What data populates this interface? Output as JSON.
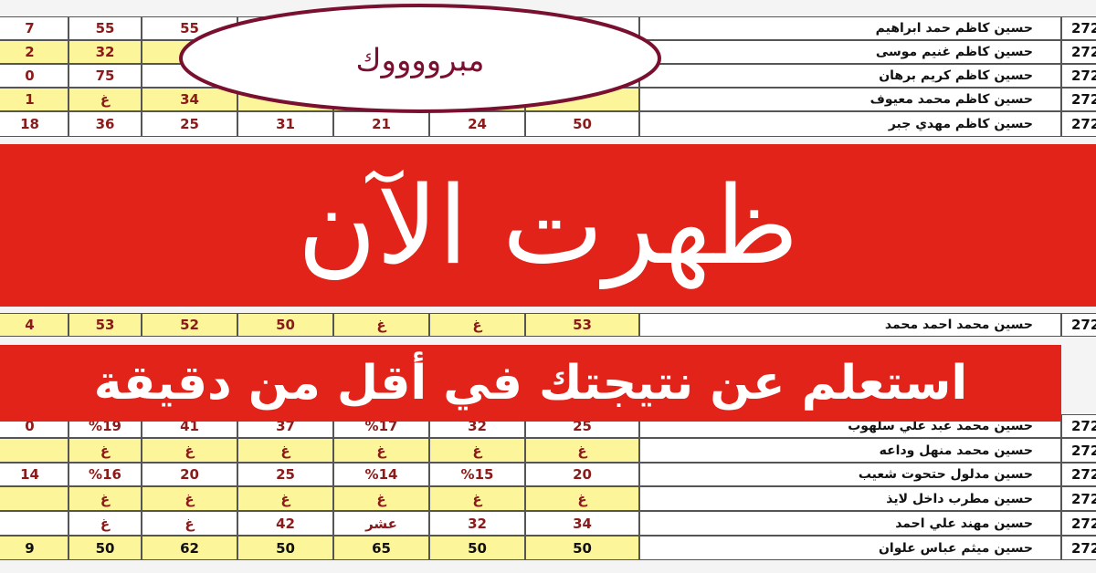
{
  "congrats": "مبرووووك",
  "banner_main": "ظهرت الآن",
  "banner_sub": "استعلم عن نتيجتك في أقل من دقيقة",
  "table": {
    "rows": [
      [
        "7",
        "55",
        "55",
        null,
        null,
        null,
        null,
        "حسين كاظم حمد ابراهيم",
        "272"
      ],
      [
        "2",
        "32",
        null,
        null,
        null,
        null,
        null,
        "حسين كاظم غنيم موسى",
        "272"
      ],
      [
        "0",
        "75",
        null,
        null,
        null,
        null,
        null,
        "حسين كاظم كريم برهان",
        "272"
      ],
      [
        "1",
        "غ",
        "34",
        null,
        null,
        null,
        null,
        "حسين كاظم محمد معيوف",
        "272"
      ],
      [
        "18",
        "36",
        "25",
        "31",
        "21",
        "24",
        "50",
        "حسين كاظم مهدي جبر",
        "272"
      ],
      [
        "4",
        "53",
        "52",
        "50",
        "غ",
        "غ",
        "53",
        "حسين محمد احمد محمد",
        "272"
      ],
      [
        "0",
        "%19",
        "41",
        "37",
        "%17",
        "32",
        "25",
        "حسين محمد عبد علي سلهوب",
        "272"
      ],
      [
        null,
        "غ",
        "غ",
        "غ",
        "غ",
        "غ",
        "غ",
        "حسين محمد منهل وداعه",
        "272"
      ],
      [
        "14",
        "%16",
        "20",
        "25",
        "%14",
        "%15",
        "20",
        "حسين مدلول حتحوت شعيب",
        "272"
      ],
      [
        null,
        "غ",
        "غ",
        "غ",
        "غ",
        "غ",
        "غ",
        "حسين مطرب داخل لايذ",
        "272"
      ],
      [
        null,
        "غ",
        "غ",
        "42",
        "عشر",
        "32",
        "34",
        "حسين مهند علي احمد",
        "272"
      ],
      [
        "9",
        "50",
        "62",
        "50",
        "65",
        "50",
        "50",
        "حسين ميثم عباس علوان",
        "272"
      ]
    ]
  }
}
